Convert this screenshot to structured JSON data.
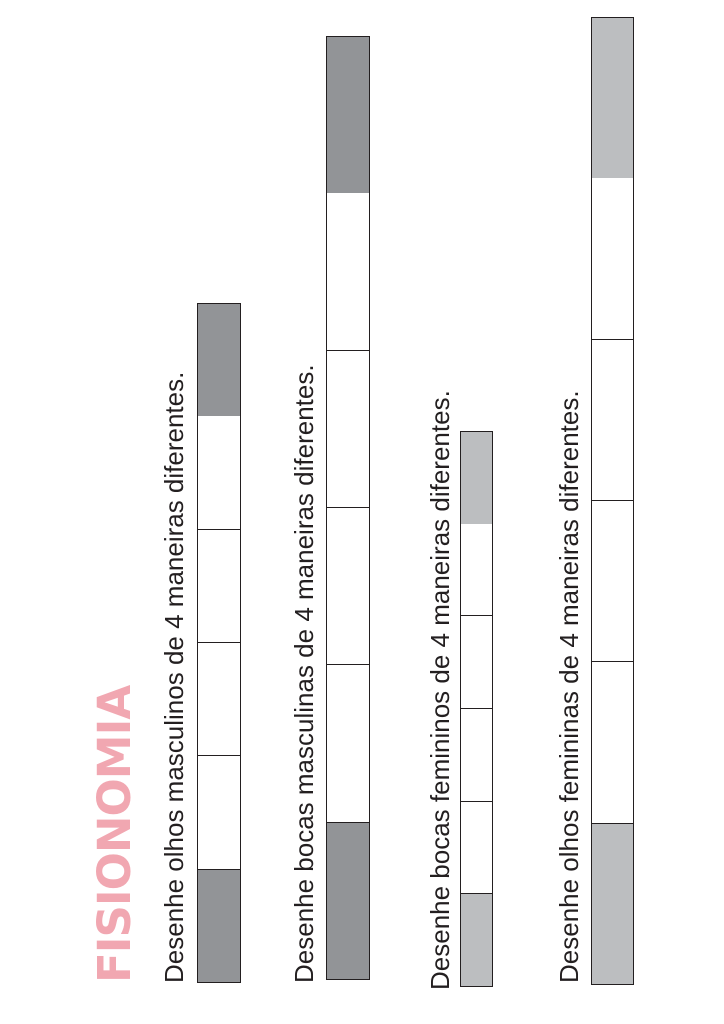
{
  "title": "FISIONOMIA",
  "instructions": [
    "Desenhe olhos masculinos de 4 maneiras diferentes.",
    "Desenhe bocas masculinas de 4 maneiras diferentes.",
    "Desenhe bocas femininos de 4 maneiras diferentes.",
    "Desenhe olhos femininas de 4 maneiras diferentes."
  ],
  "drawing_boxes_per_strip": 4,
  "colors": {
    "title": "#f1a7b1",
    "text": "#231f20",
    "male_caps": "#929497",
    "female_caps": "#bcbec0",
    "box_border": "#231f20"
  }
}
